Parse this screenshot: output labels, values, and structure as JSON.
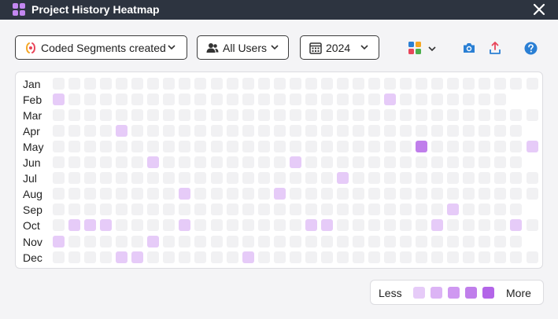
{
  "window": {
    "title": "Project History Heatmap"
  },
  "toolbar": {
    "metric_select": {
      "value": "Coded Segments created"
    },
    "user_select": {
      "value": "All Users"
    },
    "year_select": {
      "value": "2024"
    }
  },
  "icons": {
    "app": "app-grid-icon",
    "close": "close-icon",
    "metric": "coded-segment-icon",
    "users": "users-icon",
    "calendar": "calendar-icon",
    "palette": "color-palette-icon",
    "camera": "camera-icon",
    "export": "export-icon",
    "help": "help-icon"
  },
  "colors": {
    "empty": "#f1f1f3",
    "level1": "#e6cbf8",
    "level2": "#dcb4f5",
    "level3": "#cf98f1",
    "level4": "#c07eeb",
    "level5": "#b365e8",
    "accent": "#2a7fd4"
  },
  "chart_data": {
    "type": "heatmap",
    "months": [
      "Jan",
      "Feb",
      "Mar",
      "Apr",
      "May",
      "Jun",
      "Jul",
      "Aug",
      "Sep",
      "Oct",
      "Nov",
      "Dec"
    ],
    "days_in_month": [
      31,
      29,
      31,
      30,
      31,
      30,
      31,
      31,
      30,
      31,
      30,
      31
    ],
    "levels": [
      {},
      {
        "1": 1,
        "22": 1
      },
      {},
      {
        "5": 1
      },
      {
        "24": 4,
        "31": 1
      },
      {
        "7": 1,
        "16": 1
      },
      {
        "19": 1
      },
      {
        "9": 1,
        "15": 1
      },
      {
        "26": 1
      },
      {
        "2": 1,
        "3": 1,
        "4": 1,
        "9": 1,
        "17": 1,
        "18": 1,
        "25": 1,
        "30": 1
      },
      {
        "1": 1,
        "7": 1
      },
      {
        "5": 1,
        "6": 1,
        "13": 1
      }
    ]
  },
  "legend": {
    "less": "Less",
    "more": "More"
  }
}
